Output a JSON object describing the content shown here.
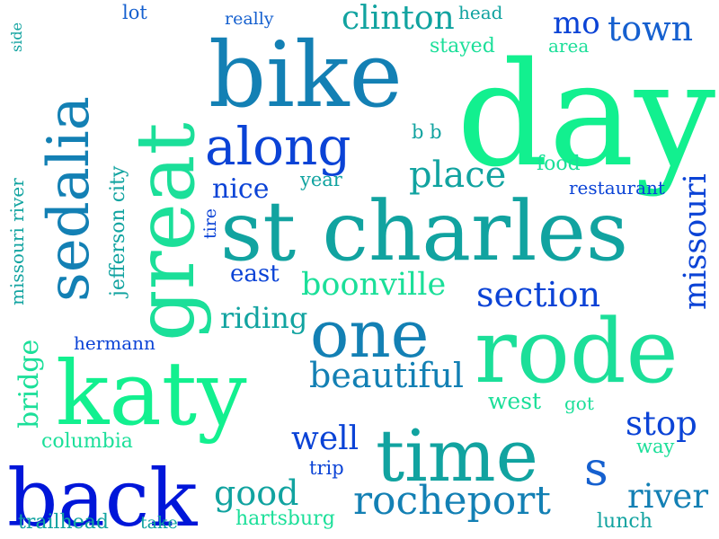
{
  "colors": {
    "deep_blue": "#0016d9",
    "royal_blue": "#0b43d6",
    "blue": "#1560cf",
    "steel_teal": "#1380b4",
    "teal": "#11a3a0",
    "sea_green": "#14c49b",
    "mint": "#1bdf99",
    "spring_green": "#12f08f"
  },
  "words": [
    {
      "text": "day",
      "color": "spring_green"
    },
    {
      "text": "bike",
      "color": "steel_teal"
    },
    {
      "text": "st charles",
      "color": "teal"
    },
    {
      "text": "katy",
      "color": "spring_green"
    },
    {
      "text": "rode",
      "color": "mint"
    },
    {
      "text": "back",
      "color": "deep_blue"
    },
    {
      "text": "time",
      "color": "teal"
    },
    {
      "text": "great",
      "color": "mint"
    },
    {
      "text": "sedalia",
      "color": "steel_teal"
    },
    {
      "text": "one",
      "color": "steel_teal"
    },
    {
      "text": "along",
      "color": "royal_blue"
    },
    {
      "text": "rocheport",
      "color": "steel_teal"
    },
    {
      "text": "s",
      "color": "blue"
    },
    {
      "text": "place",
      "color": "teal"
    },
    {
      "text": "beautiful",
      "color": "steel_teal"
    },
    {
      "text": "section",
      "color": "royal_blue"
    },
    {
      "text": "boonville",
      "color": "mint"
    },
    {
      "text": "good",
      "color": "teal"
    },
    {
      "text": "river",
      "color": "steel_teal"
    },
    {
      "text": "stop",
      "color": "royal_blue"
    },
    {
      "text": "missouri",
      "color": "royal_blue"
    },
    {
      "text": "town",
      "color": "blue"
    },
    {
      "text": "clinton",
      "color": "teal"
    },
    {
      "text": "well",
      "color": "royal_blue"
    },
    {
      "text": "bridge",
      "color": "mint"
    },
    {
      "text": "riding",
      "color": "teal"
    },
    {
      "text": "nice",
      "color": "royal_blue"
    },
    {
      "text": "mo",
      "color": "royal_blue"
    },
    {
      "text": "jefferson city",
      "color": "teal"
    },
    {
      "text": "east",
      "color": "royal_blue"
    },
    {
      "text": "missouri river",
      "color": "teal"
    },
    {
      "text": "west",
      "color": "mint"
    },
    {
      "text": "columbia",
      "color": "mint"
    },
    {
      "text": "hartsburg",
      "color": "mint"
    },
    {
      "text": "trailhead",
      "color": "teal"
    },
    {
      "text": "stayed",
      "color": "mint"
    },
    {
      "text": "head",
      "color": "teal"
    },
    {
      "text": "food",
      "color": "mint"
    },
    {
      "text": "restaurant",
      "color": "royal_blue"
    },
    {
      "text": "hermann",
      "color": "royal_blue"
    },
    {
      "text": "lunch",
      "color": "teal"
    },
    {
      "text": "way",
      "color": "mint"
    },
    {
      "text": "trip",
      "color": "royal_blue"
    },
    {
      "text": "year",
      "color": "teal"
    },
    {
      "text": "b b",
      "color": "teal"
    },
    {
      "text": "area",
      "color": "mint"
    },
    {
      "text": "got",
      "color": "mint"
    },
    {
      "text": "lot",
      "color": "blue"
    },
    {
      "text": "really",
      "color": "blue"
    },
    {
      "text": "take",
      "color": "teal"
    },
    {
      "text": "tire",
      "color": "royal_blue"
    },
    {
      "text": "side",
      "color": "teal"
    }
  ]
}
